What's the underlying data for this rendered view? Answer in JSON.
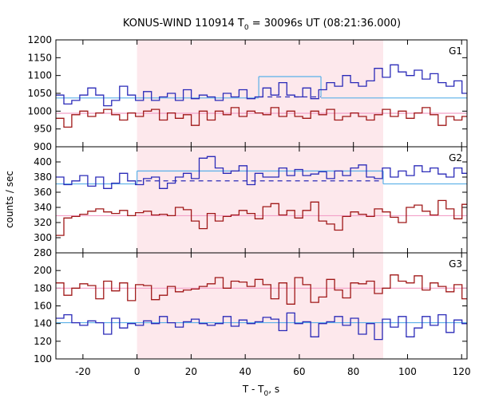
{
  "chart_data": {
    "type": "line",
    "title": "KONUS-WIND 110914 T",
    "title_sub": "0",
    "title_tail": " = 30096s UT (08:21:36.000)",
    "xlabel": "T - T",
    "xlabel_sub": "0",
    "xlabel_tail": ", s",
    "ylabel": "counts / sec",
    "xlim": [
      -30,
      122
    ],
    "x_ticks": [
      -20,
      0,
      20,
      40,
      60,
      80,
      100,
      120
    ],
    "shaded_interval": [
      0,
      91
    ],
    "grid": false,
    "colors": {
      "red": "#a01818",
      "blue": "#2a2ab8",
      "pink": "#f2a0c8",
      "light_blue": "#5ab0e8",
      "shade": "#fde8ec"
    },
    "panels": [
      {
        "label": "G1",
        "ylim": [
          900,
          1200
        ],
        "y_ticks": [
          900,
          950,
          1000,
          1050,
          1100,
          1150,
          1200
        ],
        "series": [
          {
            "color": "blue",
            "x0": -30,
            "dx": 2.944,
            "values": [
              1045,
              1020,
              1030,
              1045,
              1065,
              1045,
              1015,
              1030,
              1070,
              1045,
              1030,
              1055,
              1030,
              1040,
              1050,
              1030,
              1060,
              1035,
              1045,
              1040,
              1030,
              1050,
              1040,
              1060,
              1035,
              1040,
              1065,
              1045,
              1080,
              1045,
              1040,
              1065,
              1035,
              1060,
              1080,
              1070,
              1100,
              1080,
              1070,
              1085,
              1120,
              1095,
              1130,
              1110,
              1100,
              1115,
              1090,
              1105,
              1080,
              1070,
              1085,
              1050,
              1065,
              1040,
              1020,
              1045,
              1035,
              1045,
              1070,
              1080,
              1040,
              1030,
              1085,
              1045,
              1050,
              1045,
              1055,
              1030,
              1035,
              1040,
              1030,
              1060,
              1040,
              1050,
              1065,
              1040,
              1030,
              1045,
              1035,
              1050,
              1040,
              1065,
              1045,
              1070
            ]
          },
          {
            "color": "red",
            "x0": -30,
            "dx": 2.944,
            "values": [
              980,
              955,
              990,
              1000,
              985,
              995,
              1005,
              990,
              975,
              995,
              985,
              1000,
              1005,
              975,
              995,
              980,
              990,
              960,
              1000,
              975,
              1000,
              990,
              1010,
              985,
              1000,
              995,
              990,
              1010,
              985,
              1000,
              985,
              980,
              1000,
              990,
              1005,
              975,
              985,
              995,
              985,
              975,
              990,
              1005,
              985,
              1000,
              980,
              995,
              1010,
              990,
              960,
              985,
              975,
              985,
              1000,
              980,
              1005,
              990,
              975,
              985,
              995,
              980,
              1000,
              995,
              990,
              985,
              1005,
              980,
              1000,
              990,
              980,
              960,
              1010,
              990,
              1000,
              975,
              995,
              1005,
              985,
              990,
              1000,
              965,
              995,
              1005,
              985,
              970
            ]
          }
        ],
        "fit_lines": [
          {
            "color": "light_blue",
            "style": "solid",
            "segments": [
              [
                -30,
                1037
              ],
              [
                45,
                1037
              ]
            ]
          },
          {
            "color": "light_blue",
            "style": "solid",
            "segments": [
              [
                45,
                1097
              ],
              [
                68,
                1097
              ]
            ]
          },
          {
            "color": "light_blue",
            "style": "solid",
            "segments": [
              [
                68,
                1037
              ],
              [
                122,
                1037
              ]
            ]
          },
          {
            "color": "blue",
            "style": "dashed",
            "segments": [
              [
                45,
                1040
              ],
              [
                68,
                1040
              ]
            ]
          },
          {
            "color": "pink",
            "style": "solid",
            "segments": [
              [
                -30,
                994
              ],
              [
                122,
                994
              ]
            ]
          }
        ],
        "vert_links": [
          [
            45,
            1040,
            1097
          ],
          [
            68,
            1040,
            1097
          ]
        ]
      },
      {
        "label": "G2",
        "ylim": [
          280,
          420
        ],
        "y_ticks": [
          280,
          300,
          320,
          340,
          360,
          380,
          400
        ],
        "series": [
          {
            "color": "blue",
            "x0": -30,
            "dx": 2.944,
            "values": [
              380,
              370,
              375,
              382,
              368,
              380,
              365,
              372,
              385,
              375,
              370,
              378,
              380,
              365,
              372,
              380,
              385,
              378,
              405,
              407,
              392,
              385,
              388,
              395,
              370,
              385,
              380,
              380,
              392,
              382,
              390,
              382,
              384,
              387,
              378,
              388,
              382,
              392,
              396,
              380,
              378,
              392,
              380,
              388,
              382,
              395,
              387,
              392,
              384,
              380,
              392,
              385,
              376,
              390,
              382,
              397,
              384,
              404,
              382,
              398,
              377,
              386,
              398,
              382,
              376,
              390,
              385,
              364,
              382,
              375,
              380,
              368,
              378,
              374,
              383,
              366,
              378,
              376,
              362,
              372,
              383,
              364,
              370,
              375
            ]
          },
          {
            "color": "red",
            "x0": -30,
            "dx": 2.944,
            "values": [
              303,
              326,
              328,
              331,
              335,
              338,
              334,
              332,
              336,
              329,
              333,
              335,
              330,
              331,
              329,
              340,
              337,
              322,
              312,
              332,
              322,
              328,
              330,
              336,
              332,
              325,
              341,
              345,
              330,
              336,
              326,
              336,
              347,
              322,
              318,
              310,
              328,
              334,
              331,
              328,
              338,
              334,
              327,
              320,
              340,
              343,
              335,
              330,
              349,
              338,
              325,
              344,
              328,
              322,
              332,
              316,
              335,
              328,
              330,
              322,
              334,
              327,
              318,
              330,
              332,
              325,
              322,
              338,
              328,
              326,
              322,
              330,
              334,
              328,
              322,
              331,
              337,
              330,
              328,
              322,
              333,
              327,
              335,
              332
            ]
          }
        ],
        "fit_lines": [
          {
            "color": "light_blue",
            "style": "solid",
            "segments": [
              [
                -30,
                371
              ],
              [
                0,
                371
              ]
            ]
          },
          {
            "color": "light_blue",
            "style": "solid",
            "segments": [
              [
                0,
                388
              ],
              [
                91,
                388
              ]
            ]
          },
          {
            "color": "light_blue",
            "style": "solid",
            "segments": [
              [
                91,
                371
              ],
              [
                122,
                371
              ]
            ]
          },
          {
            "color": "blue",
            "style": "dashed",
            "segments": [
              [
                0,
                375
              ],
              [
                91,
                375
              ]
            ]
          },
          {
            "color": "pink",
            "style": "solid",
            "segments": [
              [
                -30,
                329
              ],
              [
                122,
                329
              ]
            ]
          }
        ],
        "vert_links": [
          [
            0,
            371,
            388
          ],
          [
            91,
            371,
            388
          ]
        ]
      },
      {
        "label": "G3",
        "ylim": [
          100,
          220
        ],
        "y_ticks": [
          100,
          120,
          140,
          160,
          180,
          200
        ],
        "series": [
          {
            "color": "red",
            "x0": -30,
            "dx": 2.944,
            "values": [
              186,
              172,
              180,
              185,
              183,
              168,
              188,
              177,
              186,
              166,
              184,
              183,
              167,
              172,
              182,
              176,
              178,
              179,
              182,
              185,
              192,
              180,
              188,
              187,
              182,
              190,
              184,
              168,
              186,
              162,
              192,
              184,
              164,
              170,
              190,
              178,
              169,
              186,
              185,
              188,
              174,
              180,
              195,
              188,
              186,
              194,
              178,
              186,
              182,
              176,
              184,
              168,
              178,
              186,
              182,
              170,
              180,
              188,
              184,
              190,
              176,
              186,
              180,
              178,
              182,
              175,
              186,
              183,
              180,
              176,
              182,
              181,
              184,
              180,
              183,
              168,
              186,
              182,
              180,
              188,
              184,
              178,
              182,
              165
            ]
          },
          {
            "color": "blue",
            "x0": -30,
            "dx": 2.944,
            "values": [
              146,
              150,
              141,
              138,
              143,
              141,
              128,
              146,
              135,
              140,
              138,
              143,
              140,
              148,
              141,
              136,
              142,
              145,
              140,
              138,
              140,
              148,
              137,
              144,
              140,
              142,
              147,
              145,
              132,
              152,
              140,
              142,
              125,
              140,
              142,
              148,
              138,
              146,
              128,
              140,
              122,
              145,
              136,
              148,
              125,
              135,
              148,
              138,
              150,
              130,
              144,
              140,
              138,
              146,
              138,
              144,
              135,
              142,
              148,
              133,
              140,
              146,
              138,
              144,
              137,
              146,
              143,
              132,
              140,
              142,
              136,
              138,
              146,
              140,
              134,
              142,
              148,
              136,
              144,
              132,
              140,
              144,
              146,
              138
            ]
          }
        ],
        "fit_lines": [
          {
            "color": "pink",
            "style": "solid",
            "segments": [
              [
                -30,
                180
              ],
              [
                122,
                180
              ]
            ]
          },
          {
            "color": "light_blue",
            "style": "solid",
            "segments": [
              [
                -30,
                141
              ],
              [
                122,
                141
              ]
            ]
          }
        ],
        "vert_links": []
      }
    ]
  }
}
